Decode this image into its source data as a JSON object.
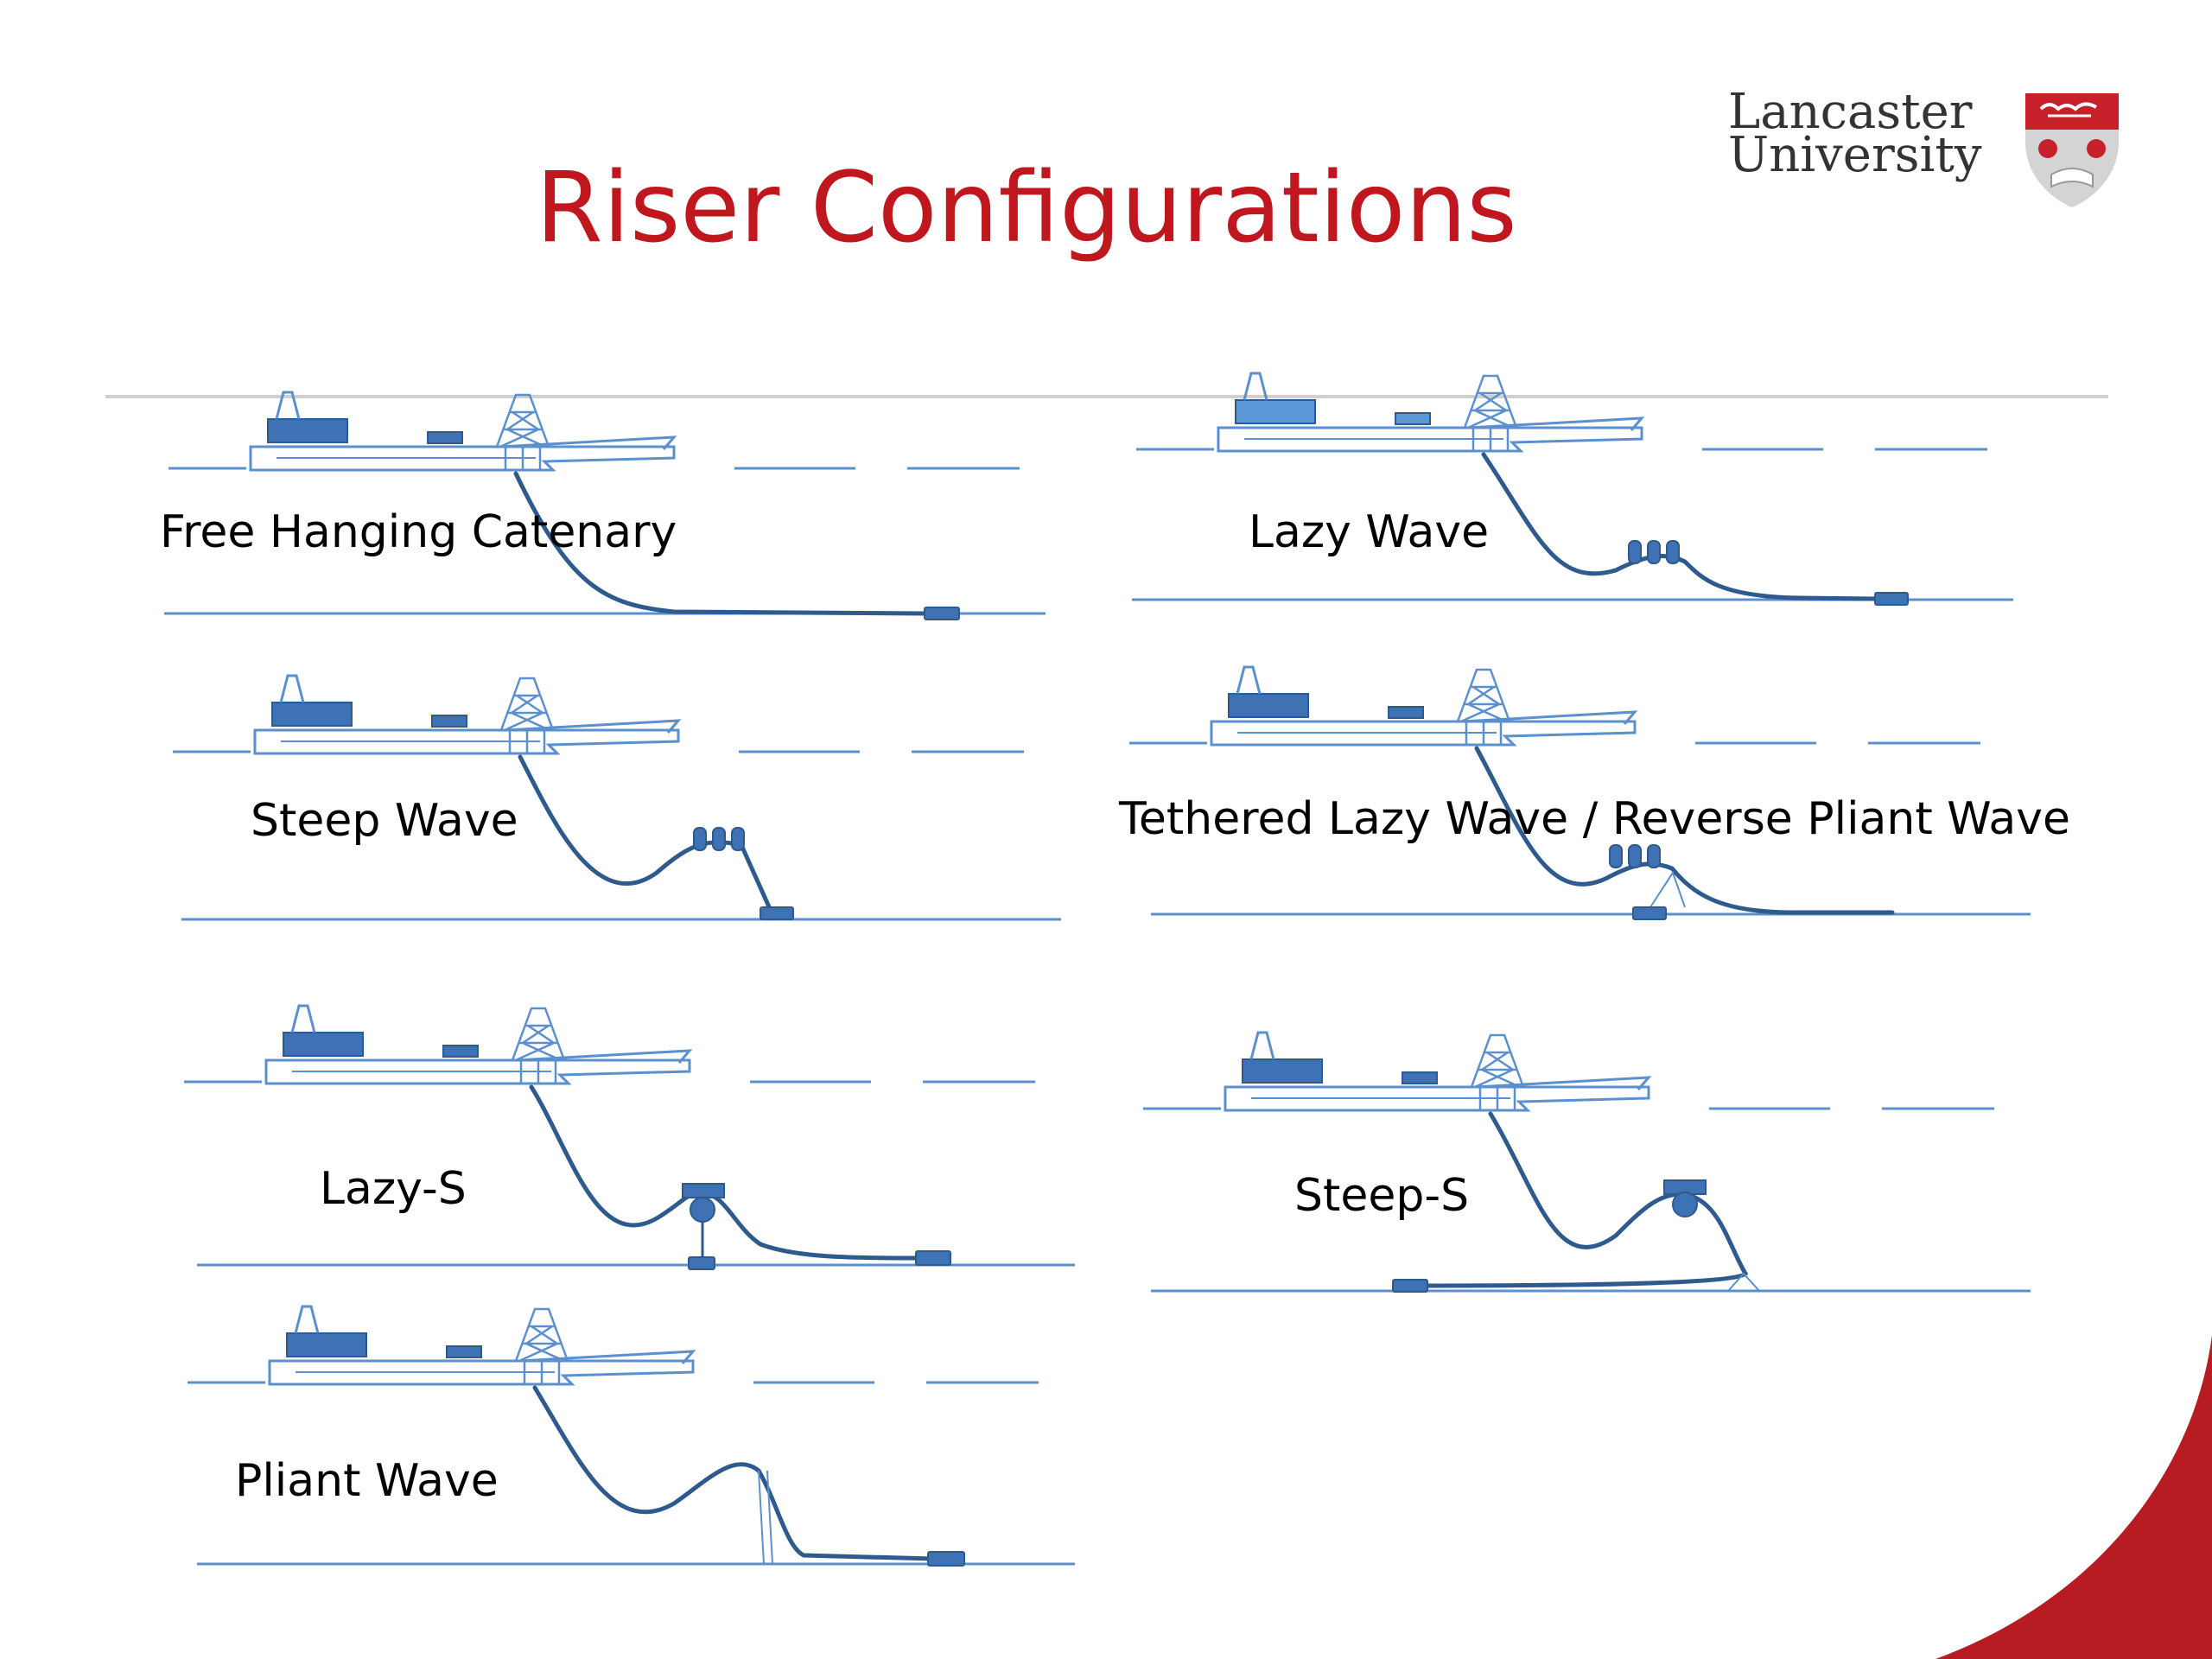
{
  "slide": {
    "title": "Riser Configurations",
    "accent_color": "#c0161e",
    "line_color": "#2e5a8e",
    "fill_color": "#3f72b5"
  },
  "logo": {
    "line1": "Lancaster",
    "line2": "University",
    "icon": "lancaster-crest"
  },
  "diagrams": [
    {
      "label": "Free Hanging Catenary"
    },
    {
      "label": "Lazy Wave"
    },
    {
      "label": "Steep Wave"
    },
    {
      "label": "Tethered Lazy Wave / Reverse Pliant Wave"
    },
    {
      "label": "Lazy-S"
    },
    {
      "label": "Steep-S"
    },
    {
      "label": "Pliant Wave"
    }
  ]
}
